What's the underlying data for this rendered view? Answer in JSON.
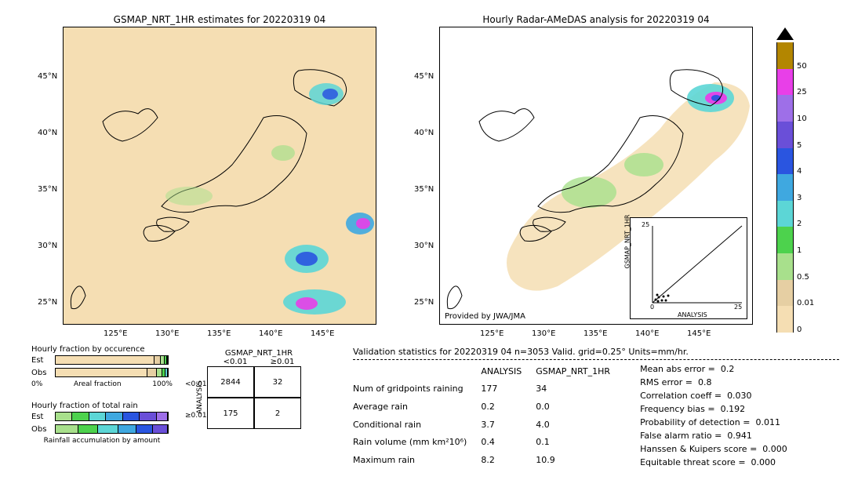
{
  "left_map": {
    "title": "GSMAP_NRT_1HR estimates for 20220319 04",
    "xticks": [
      "125°E",
      "130°E",
      "135°E",
      "140°E",
      "145°E"
    ],
    "yticks": [
      "25°N",
      "30°N",
      "35°N",
      "40°N",
      "45°N"
    ],
    "xlim": [
      120,
      150
    ],
    "ylim": [
      22,
      48
    ],
    "background_color": "#f5deb3"
  },
  "right_map": {
    "title": "Hourly Radar-AMeDAS analysis for 20220319 04",
    "xticks": [
      "125°E",
      "130°E",
      "135°E",
      "140°E",
      "145°E"
    ],
    "yticks": [
      "25°N",
      "30°N",
      "35°N",
      "40°N",
      "45°N"
    ],
    "attribution": "Provided by JWA/JMA",
    "background_color": "#ffffff"
  },
  "colorbar": {
    "segments": [
      {
        "color": "#f5deb3",
        "label": "0"
      },
      {
        "color": "#e6cfa3",
        "label": "0.01"
      },
      {
        "color": "#a8e08c",
        "label": "0.5"
      },
      {
        "color": "#4dd24d",
        "label": "1"
      },
      {
        "color": "#5cd6d6",
        "label": "2"
      },
      {
        "color": "#3fa8e0",
        "label": "3"
      },
      {
        "color": "#2a55e0",
        "label": "4"
      },
      {
        "color": "#6a4fd8",
        "label": "5"
      },
      {
        "color": "#9e6fe8",
        "label": "10"
      },
      {
        "color": "#e83fe8",
        "label": "25"
      },
      {
        "color": "#b38600",
        "label": "50"
      }
    ],
    "top_marker_color": "#000000"
  },
  "occurrence": {
    "title": "Hourly fraction by occurence",
    "rows": [
      {
        "label": "Est",
        "segments": [
          {
            "w": 88,
            "c": "#f5deb3"
          },
          {
            "w": 6,
            "c": "#e6cfa3"
          },
          {
            "w": 3,
            "c": "#a8e08c"
          },
          {
            "w": 2,
            "c": "#4dd24d"
          },
          {
            "w": 1,
            "c": "#5cd6d6"
          }
        ]
      },
      {
        "label": "Obs",
        "segments": [
          {
            "w": 82,
            "c": "#f5deb3"
          },
          {
            "w": 8,
            "c": "#e6cfa3"
          },
          {
            "w": 5,
            "c": "#a8e08c"
          },
          {
            "w": 3,
            "c": "#4dd24d"
          },
          {
            "w": 2,
            "c": "#5cd6d6"
          }
        ]
      }
    ],
    "xaxis_left": "0%",
    "xaxis_label": "Areal fraction",
    "xaxis_right": "100%"
  },
  "total_rain": {
    "title": "Hourly fraction of total rain",
    "rows": [
      {
        "label": "Est",
        "segments": [
          {
            "w": 15,
            "c": "#a8e08c"
          },
          {
            "w": 15,
            "c": "#4dd24d"
          },
          {
            "w": 15,
            "c": "#5cd6d6"
          },
          {
            "w": 15,
            "c": "#3fa8e0"
          },
          {
            "w": 15,
            "c": "#2a55e0"
          },
          {
            "w": 15,
            "c": "#6a4fd8"
          },
          {
            "w": 10,
            "c": "#9e6fe8"
          }
        ]
      },
      {
        "label": "Obs",
        "segments": [
          {
            "w": 20,
            "c": "#a8e08c"
          },
          {
            "w": 18,
            "c": "#4dd24d"
          },
          {
            "w": 18,
            "c": "#5cd6d6"
          },
          {
            "w": 16,
            "c": "#3fa8e0"
          },
          {
            "w": 15,
            "c": "#2a55e0"
          },
          {
            "w": 13,
            "c": "#6a4fd8"
          }
        ]
      }
    ],
    "footer": "Rainfall accumulation by amount"
  },
  "contingency": {
    "col_header": "GSMAP_NRT_1HR",
    "row_header": "ANALYSIS",
    "col_labels": [
      "<0.01",
      "≥0.01"
    ],
    "row_labels": [
      "<0.01",
      "≥0.01"
    ],
    "cells": [
      [
        "2844",
        "32"
      ],
      [
        "175",
        "2"
      ]
    ]
  },
  "stats": {
    "title": "Validation statistics for 20220319 04  n=3053 Valid. grid=0.25° Units=mm/hr.",
    "table_header": [
      "ANALYSIS",
      "GSMAP_NRT_1HR"
    ],
    "rows": [
      {
        "label": "Num of gridpoints raining",
        "a": "177",
        "b": "34"
      },
      {
        "label": "Average rain",
        "a": "0.2",
        "b": "0.0"
      },
      {
        "label": "Conditional rain",
        "a": "3.7",
        "b": "4.0"
      },
      {
        "label": "Rain volume (mm km²10⁶)",
        "a": "0.4",
        "b": "0.1"
      },
      {
        "label": "Maximum rain",
        "a": "8.2",
        "b": "10.9"
      }
    ],
    "metrics": [
      {
        "label": "Mean abs error =",
        "v": "0.2"
      },
      {
        "label": "RMS error =",
        "v": "0.8"
      },
      {
        "label": "Correlation coeff =",
        "v": "0.030"
      },
      {
        "label": "Frequency bias =",
        "v": "0.192"
      },
      {
        "label": "Probability of detection =",
        "v": "0.011"
      },
      {
        "label": "False alarm ratio =",
        "v": "0.941"
      },
      {
        "label": "Hanssen & Kuipers score =",
        "v": "0.000"
      },
      {
        "label": "Equitable threat score =",
        "v": "0.000"
      }
    ]
  },
  "scatter": {
    "xlabel": "ANALYSIS",
    "ylabel": "GSMAP_NRT_1HR",
    "xlim": [
      0,
      25
    ],
    "ylim": [
      0,
      25
    ],
    "ticks": [
      "0",
      "5",
      "10",
      "15",
      "20",
      "25"
    ],
    "points": [
      [
        0.5,
        0.5
      ],
      [
        1,
        0.4
      ],
      [
        1.2,
        1
      ],
      [
        1.8,
        0.6
      ],
      [
        2,
        1.2
      ],
      [
        2.5,
        0.5
      ],
      [
        3,
        1.5
      ],
      [
        0.8,
        2
      ]
    ]
  }
}
